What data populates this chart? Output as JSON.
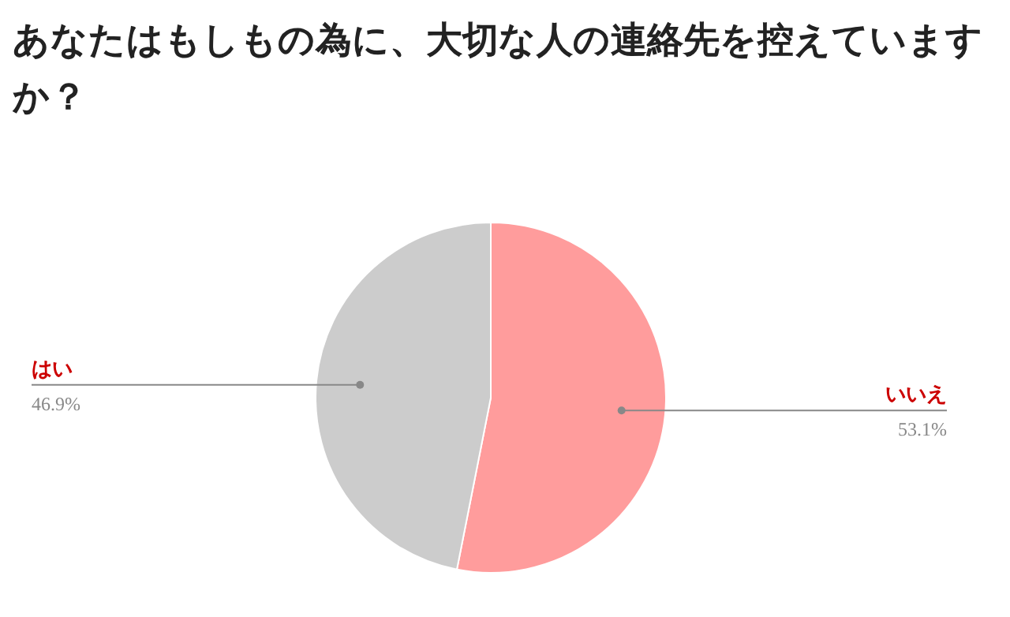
{
  "chart_data": {
    "type": "pie",
    "title": "あなたはもしもの為に、大切な人の連絡先を控えていますか？",
    "categories": [
      "いいえ",
      "はい"
    ],
    "values": [
      53.1,
      46.9
    ],
    "value_labels": [
      "53.1%",
      "46.9%"
    ],
    "colors": [
      "#ff9c9c",
      "#cccccc"
    ]
  }
}
